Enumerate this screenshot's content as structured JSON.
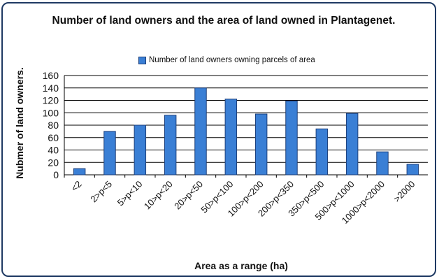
{
  "chart_data": {
    "type": "bar",
    "title": "Number of land owners and the area of land owned in Plantagenet.",
    "legend": [
      "Number of land owners owning parcels of area"
    ],
    "xlabel": "Area as a range (ha)",
    "ylabel": "Nubmer of land owners.",
    "categories": [
      "<2",
      "2>p<5",
      "5>p<10",
      "10>p<20",
      "20>p<50",
      "50>p<100",
      "100>p<200",
      "200>p<350",
      "350>p<500",
      "500>p<1000",
      "1000>p<2000",
      ">2000"
    ],
    "series": [
      {
        "name": "Number of land owners owning parcels of area",
        "values": [
          10,
          70,
          80,
          96,
          140,
          122,
          98,
          119,
          74,
          99,
          37,
          17
        ]
      }
    ],
    "ylim": [
      0,
      160
    ],
    "yticks": [
      0,
      20,
      40,
      60,
      80,
      100,
      120,
      140,
      160
    ],
    "grid": true,
    "legend_position": "top",
    "colors": {
      "bar": "#3a7fd5",
      "bar_edge": "#1d3f7a",
      "grid": "#000000",
      "border": "#1f3a63"
    }
  }
}
